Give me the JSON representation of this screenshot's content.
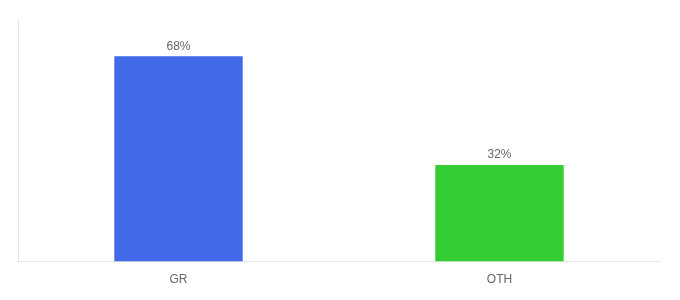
{
  "chart_data": {
    "type": "bar",
    "categories": [
      "GR",
      "OTH"
    ],
    "values": [
      68,
      32
    ],
    "value_labels": [
      "68%",
      "32%"
    ],
    "colors": [
      "#4169e8",
      "#33cc33"
    ],
    "ylim": [
      0,
      80
    ],
    "grid": false,
    "data_labels": true,
    "tick_labels": "x"
  }
}
